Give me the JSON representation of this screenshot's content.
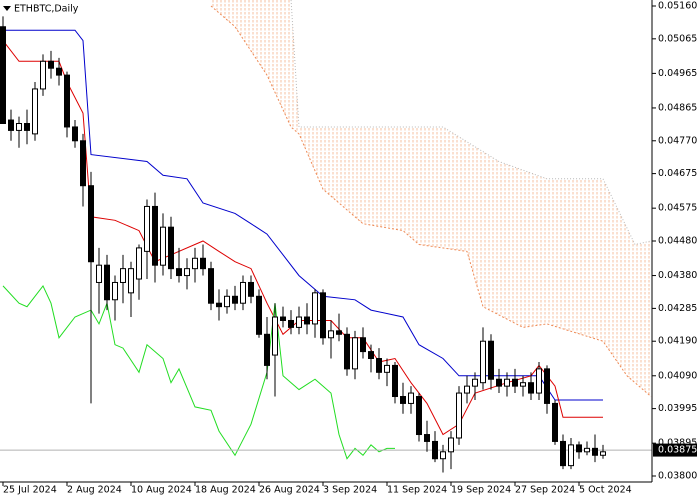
{
  "chart_data": {
    "type": "candlestick",
    "title": "ETHBTC,Daily",
    "x": [
      "2024-07-25",
      "2024-07-26",
      "2024-07-27",
      "2024-07-28",
      "2024-07-29",
      "2024-07-30",
      "2024-07-31",
      "2024-08-01",
      "2024-08-02",
      "2024-08-03",
      "2024-08-04",
      "2024-08-05",
      "2024-08-06",
      "2024-08-07",
      "2024-08-08",
      "2024-08-09",
      "2024-08-10",
      "2024-08-11",
      "2024-08-12",
      "2024-08-13",
      "2024-08-14",
      "2024-08-15",
      "2024-08-16",
      "2024-08-17",
      "2024-08-18",
      "2024-08-19",
      "2024-08-20",
      "2024-08-21",
      "2024-08-22",
      "2024-08-23",
      "2024-08-24",
      "2024-08-25",
      "2024-08-26",
      "2024-08-27",
      "2024-08-28",
      "2024-08-29",
      "2024-08-30",
      "2024-08-31",
      "2024-09-01",
      "2024-09-02",
      "2024-09-03",
      "2024-09-04",
      "2024-09-05",
      "2024-09-06",
      "2024-09-07",
      "2024-09-08",
      "2024-09-09",
      "2024-09-10",
      "2024-09-11",
      "2024-09-12",
      "2024-09-13",
      "2024-09-14",
      "2024-09-15",
      "2024-09-16",
      "2024-09-17",
      "2024-09-18",
      "2024-09-19",
      "2024-09-20",
      "2024-09-21",
      "2024-09-22",
      "2024-09-23",
      "2024-09-24",
      "2024-09-25",
      "2024-09-26",
      "2024-09-27",
      "2024-09-28",
      "2024-09-29",
      "2024-09-30",
      "2024-10-01",
      "2024-10-02",
      "2024-10-03",
      "2024-10-04",
      "2024-10-05",
      "2024-10-06",
      "2024-10-07",
      "2024-10-08"
    ],
    "open": [
      0.051,
      0.0483,
      0.048,
      0.0482,
      0.0479,
      0.0492,
      0.05,
      0.0498,
      0.0496,
      0.0481,
      0.0477,
      0.0464,
      0.0436,
      0.0441,
      0.0431,
      0.0436,
      0.0433,
      0.0437,
      0.0445,
      0.0458,
      0.0441,
      0.0452,
      0.044,
      0.0438,
      0.044,
      0.0443,
      0.044,
      0.043,
      0.0429,
      0.0432,
      0.043,
      0.0436,
      0.0432,
      0.0421,
      0.0415,
      0.0426,
      0.0425,
      0.0423,
      0.0426,
      0.0424,
      0.0433,
      0.042,
      0.0422,
      0.0421,
      0.0411,
      0.042,
      0.0416,
      0.0414,
      0.041,
      0.0412,
      0.0403,
      0.0401,
      0.0403,
      0.0392,
      0.039,
      0.0385,
      0.0387,
      0.0391,
      0.0404,
      0.0406,
      0.0407,
      0.0419,
      0.0408,
      0.0406,
      0.0408,
      0.0406,
      0.0407,
      0.0404,
      0.0411,
      0.0401,
      0.039,
      0.0383,
      0.0389,
      0.0387,
      0.0388,
      0.0386
    ],
    "high": [
      0.0513,
      0.0486,
      0.0484,
      0.0486,
      0.0494,
      0.0502,
      0.0503,
      0.0501,
      0.0497,
      0.0483,
      0.0479,
      0.0468,
      0.0446,
      0.0444,
      0.0438,
      0.0444,
      0.0442,
      0.0447,
      0.046,
      0.0462,
      0.0456,
      0.0455,
      0.0446,
      0.0443,
      0.0446,
      0.0447,
      0.0442,
      0.0434,
      0.0434,
      0.0435,
      0.0438,
      0.0438,
      0.0434,
      0.0426,
      0.043,
      0.0429,
      0.0428,
      0.0429,
      0.043,
      0.0434,
      0.0434,
      0.0425,
      0.0427,
      0.0423,
      0.0422,
      0.0423,
      0.0418,
      0.0417,
      0.0414,
      0.0413,
      0.0407,
      0.0406,
      0.0404,
      0.0396,
      0.0393,
      0.0389,
      0.0393,
      0.0406,
      0.0409,
      0.041,
      0.0423,
      0.0421,
      0.0411,
      0.041,
      0.0411,
      0.0409,
      0.041,
      0.0413,
      0.0412,
      0.0402,
      0.0392,
      0.0391,
      0.039,
      0.039,
      0.0392,
      0.0389
    ],
    "low": [
      0.0482,
      0.0477,
      0.0475,
      0.0476,
      0.0477,
      0.049,
      0.0495,
      0.0493,
      0.0478,
      0.0475,
      0.0458,
      0.0401,
      0.0427,
      0.0428,
      0.0425,
      0.043,
      0.0426,
      0.0431,
      0.0437,
      0.0436,
      0.0438,
      0.0437,
      0.0436,
      0.0434,
      0.0436,
      0.0438,
      0.0428,
      0.0425,
      0.0427,
      0.0428,
      0.0428,
      0.043,
      0.042,
      0.0408,
      0.0403,
      0.0423,
      0.0421,
      0.0421,
      0.0421,
      0.042,
      0.0418,
      0.0414,
      0.0419,
      0.0409,
      0.0408,
      0.0414,
      0.041,
      0.0408,
      0.0406,
      0.0401,
      0.0398,
      0.0398,
      0.039,
      0.0387,
      0.0384,
      0.0381,
      0.0382,
      0.0389,
      0.0401,
      0.0402,
      0.0405,
      0.0405,
      0.0404,
      0.0403,
      0.0404,
      0.0403,
      0.0402,
      0.0402,
      0.0398,
      0.0389,
      0.0382,
      0.0382,
      0.0385,
      0.0386,
      0.0384,
      0.0385
    ],
    "close": [
      0.0482,
      0.048,
      0.0482,
      0.048,
      0.0492,
      0.05,
      0.0498,
      0.0496,
      0.0481,
      0.0477,
      0.0464,
      0.0442,
      0.0441,
      0.0431,
      0.0436,
      0.044,
      0.044,
      0.0446,
      0.0458,
      0.0441,
      0.0452,
      0.044,
      0.0438,
      0.044,
      0.0443,
      0.044,
      0.043,
      0.0429,
      0.0432,
      0.043,
      0.0436,
      0.0432,
      0.0421,
      0.0412,
      0.0426,
      0.0425,
      0.0423,
      0.0426,
      0.0424,
      0.0433,
      0.042,
      0.0422,
      0.0421,
      0.0411,
      0.042,
      0.0416,
      0.0414,
      0.041,
      0.0412,
      0.0403,
      0.0401,
      0.0404,
      0.0392,
      0.039,
      0.0385,
      0.0387,
      0.0391,
      0.0404,
      0.0406,
      0.0408,
      0.0419,
      0.0408,
      0.0406,
      0.0408,
      0.0406,
      0.0407,
      0.0404,
      0.0411,
      0.0401,
      0.039,
      0.0383,
      0.0389,
      0.0387,
      0.0388,
      0.0386,
      0.0387
    ],
    "up_color": "#ffffff",
    "down_color": "#000000",
    "lines": [
      {
        "color": "#0000cc",
        "x": [
          "2024-07-25",
          "2024-08-03",
          "2024-08-04",
          "2024-08-05",
          "2024-08-12",
          "2024-08-14",
          "2024-08-17",
          "2024-08-19",
          "2024-08-23",
          "2024-08-25",
          "2024-08-27",
          "2024-08-29",
          "2024-08-31",
          "2024-09-03",
          "2024-09-07",
          "2024-09-09",
          "2024-09-13",
          "2024-09-15",
          "2024-09-18",
          "2024-09-20",
          "2024-09-30",
          "2024-10-02",
          "2024-10-08"
        ],
        "values": [
          0.0509,
          0.0509,
          0.0506,
          0.0473,
          0.0471,
          0.0467,
          0.0466,
          0.0459,
          0.0456,
          0.0453,
          0.045,
          0.0444,
          0.0438,
          0.0432,
          0.0431,
          0.0428,
          0.0426,
          0.0418,
          0.0414,
          0.0409,
          0.0409,
          0.0402,
          0.0402
        ]
      },
      {
        "color": "#dd0000",
        "x": [
          "2024-07-25",
          "2024-07-27",
          "2024-08-01",
          "2024-08-02",
          "2024-08-04",
          "2024-08-05",
          "2024-08-08",
          "2024-08-11",
          "2024-08-13",
          "2024-08-15",
          "2024-08-19",
          "2024-08-21",
          "2024-08-23",
          "2024-08-25",
          "2024-08-27",
          "2024-08-29",
          "2024-08-31",
          "2024-09-04",
          "2024-09-06",
          "2024-09-08",
          "2024-09-10",
          "2024-09-12",
          "2024-09-14",
          "2024-09-16",
          "2024-09-18",
          "2024-09-20",
          "2024-09-22",
          "2024-09-26",
          "2024-09-29",
          "2024-09-30",
          "2024-10-02",
          "2024-10-03",
          "2024-10-08"
        ],
        "values": [
          0.0506,
          0.05,
          0.05,
          0.0494,
          0.0485,
          0.0455,
          0.0454,
          0.0451,
          0.0442,
          0.0444,
          0.0448,
          0.0445,
          0.0442,
          0.044,
          0.043,
          0.0421,
          0.0425,
          0.0425,
          0.042,
          0.042,
          0.0413,
          0.0414,
          0.0407,
          0.0401,
          0.0392,
          0.0395,
          0.0404,
          0.0407,
          0.0409,
          0.0412,
          0.0406,
          0.0397,
          0.0397
        ]
      },
      {
        "color": "#22dd22",
        "x": [
          "2024-07-25",
          "2024-07-27",
          "2024-07-28",
          "2024-07-29",
          "2024-07-30",
          "2024-07-31",
          "2024-08-01",
          "2024-08-03",
          "2024-08-05",
          "2024-08-06",
          "2024-08-07",
          "2024-08-08",
          "2024-08-09",
          "2024-08-11",
          "2024-08-12",
          "2024-08-14",
          "2024-08-15",
          "2024-08-16",
          "2024-08-18",
          "2024-08-20",
          "2024-08-21",
          "2024-08-23",
          "2024-08-25",
          "2024-08-27",
          "2024-08-28",
          "2024-08-29",
          "2024-08-31",
          "2024-09-02",
          "2024-09-04",
          "2024-09-05",
          "2024-09-06",
          "2024-09-07",
          "2024-09-08",
          "2024-09-09",
          "2024-09-10",
          "2024-09-11",
          "2024-09-12"
        ],
        "values": [
          0.0435,
          0.043,
          0.0429,
          0.0432,
          0.0435,
          0.043,
          0.042,
          0.0426,
          0.0428,
          0.0424,
          0.043,
          0.0418,
          0.0417,
          0.041,
          0.0418,
          0.0414,
          0.0407,
          0.0411,
          0.04,
          0.0399,
          0.0393,
          0.0386,
          0.0395,
          0.041,
          0.043,
          0.0409,
          0.0405,
          0.0408,
          0.0404,
          0.0392,
          0.0385,
          0.0388,
          0.0386,
          0.0389,
          0.0387,
          0.0388,
          0.0388
        ]
      }
    ],
    "cloud": {
      "color": "#f2b08a",
      "upper": {
        "color": "#b8b8b8",
        "x": [
          "2024-08-20",
          "2024-08-30",
          "2024-08-31",
          "2024-09-18",
          "2024-09-25",
          "2024-10-01",
          "2024-10-08",
          "2024-10-12",
          "2024-10-14"
        ],
        "values": [
          0.0518,
          0.0518,
          0.0481,
          0.0481,
          0.0471,
          0.0466,
          0.0466,
          0.0447,
          0.0448
        ]
      },
      "lower": {
        "color": "#ee8a55",
        "x": [
          "2024-08-20",
          "2024-08-23",
          "2024-08-27",
          "2024-08-30",
          "2024-08-31",
          "2024-09-03",
          "2024-09-08",
          "2024-09-13",
          "2024-09-15",
          "2024-09-21",
          "2024-09-23",
          "2024-09-28",
          "2024-10-01",
          "2024-10-08",
          "2024-10-11",
          "2024-10-14"
        ],
        "values": [
          0.0516,
          0.051,
          0.0496,
          0.0481,
          0.0479,
          0.0463,
          0.0453,
          0.0451,
          0.0447,
          0.0445,
          0.0429,
          0.0423,
          0.0424,
          0.0419,
          0.0409,
          0.0403
        ]
      }
    },
    "last_price": 0.03875,
    "xlim": [
      "2024-07-25",
      "2024-10-14"
    ],
    "ylim": [
      0.038,
      0.0516
    ],
    "xticks": [
      {
        "value": "2024-07-25",
        "label": "25 Jul 2024"
      },
      {
        "value": "2024-08-02",
        "label": "2 Aug 2024"
      },
      {
        "value": "2024-08-10",
        "label": "10 Aug 2024"
      },
      {
        "value": "2024-08-18",
        "label": "18 Aug 2024"
      },
      {
        "value": "2024-08-26",
        "label": "26 Aug 2024"
      },
      {
        "value": "2024-09-03",
        "label": "3 Sep 2024"
      },
      {
        "value": "2024-09-11",
        "label": "11 Sep 2024"
      },
      {
        "value": "2024-09-19",
        "label": "19 Sep 2024"
      },
      {
        "value": "2024-09-27",
        "label": "27 Sep 2024"
      },
      {
        "value": "2024-10-05",
        "label": "5 Oct 2024"
      }
    ],
    "yticks": [
      {
        "value": 0.0516,
        "label": "0.05160"
      },
      0.05065,
      0.04965,
      0.04865,
      {
        "value": 0.0477,
        "label": "0.04770"
      },
      0.04675,
      0.04575,
      {
        "value": 0.0448,
        "label": "0.04480"
      },
      {
        "value": 0.0438,
        "label": "0.04380"
      },
      0.04285,
      {
        "value": 0.0419,
        "label": "0.04190"
      },
      {
        "value": 0.0409,
        "label": "0.04090"
      },
      0.03995,
      0.03895,
      {
        "value": 0.038,
        "label": "0.03800"
      }
    ]
  }
}
